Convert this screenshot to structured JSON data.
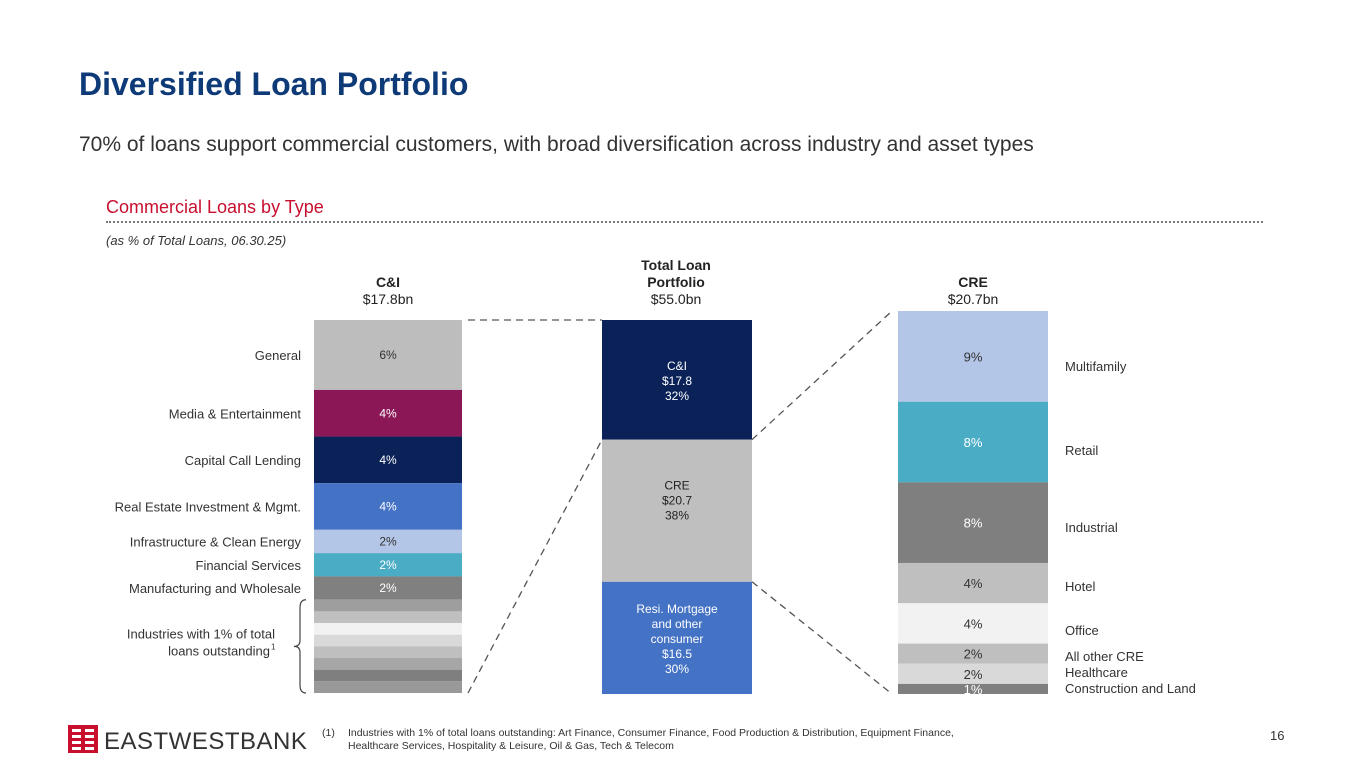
{
  "title": "Diversified Loan Portfolio",
  "subtitle": "70% of loans support commercial customers, with broad diversification across industry and asset types",
  "section_title": "Commercial Loans by Type",
  "note": "(as % of Total Loans, 06.30.25)",
  "footnote": {
    "marker": "(1)",
    "text": "Industries with 1% of total loans outstanding: Art Finance, Consumer Finance, Food Production & Distribution, Equipment Finance, Healthcare Services, Hospitality & Leisure, Oil & Gas, Tech & Telecom"
  },
  "page_number": "16",
  "logo_text": "EASTWESTBANK",
  "colors": {
    "title": "#0e3a78",
    "accent_red": "#c8102e"
  },
  "chart_data": [
    {
      "type": "bar",
      "stacked": true,
      "title": "C&I",
      "total_label": "$17.8bn",
      "segments": [
        {
          "name": "General",
          "value": 6,
          "label": "6%",
          "color": "#bdbdbd",
          "text_color": "#333333"
        },
        {
          "name": "Media & Entertainment",
          "value": 4,
          "label": "4%",
          "color": "#8c1756",
          "text_color": "#ffffff"
        },
        {
          "name": "Capital Call Lending",
          "value": 4,
          "label": "4%",
          "color": "#0a2258",
          "text_color": "#ffffff"
        },
        {
          "name": "Real Estate Investment & Mgmt.",
          "value": 4,
          "label": "4%",
          "color": "#4472c4",
          "text_color": "#ffffff"
        },
        {
          "name": "Infrastructure & Clean Energy",
          "value": 2,
          "label": "2%",
          "color": "#b4c6e7",
          "text_color": "#333333"
        },
        {
          "name": "Financial Services",
          "value": 2,
          "label": "2%",
          "color": "#4bacc6",
          "text_color": "#ffffff"
        },
        {
          "name": "Manufacturing and Wholesale",
          "value": 2,
          "label": "2%",
          "color": "#808080",
          "text_color": "#ffffff"
        }
      ],
      "small_industries": {
        "label_line1": "Industries with 1% of total",
        "label_line2": "loans outstanding",
        "superscript": "1",
        "value_each": 1,
        "count": 8,
        "colors": [
          "#9e9e9e",
          "#c0c0c0",
          "#f2f2f2",
          "#d9d9d9",
          "#bfbfbf",
          "#a6a6a6",
          "#7f7f7f",
          "#999999"
        ]
      }
    },
    {
      "type": "bar",
      "stacked": true,
      "title_line1": "Total Loan",
      "title_line2": "Portfolio",
      "total_label": "$55.0bn",
      "segments": [
        {
          "name": "C&I",
          "amount": "$17.8",
          "percent": "32%",
          "value": 32,
          "color": "#0a2258",
          "text_color": "#ffffff"
        },
        {
          "name": "CRE",
          "amount": "$20.7",
          "percent": "38%",
          "value": 38,
          "color": "#bfbfbf",
          "text_color": "#222222"
        },
        {
          "name_line1": "Resi. Mortgage",
          "name_line2": "and other",
          "name_line3": "consumer",
          "amount": "$16.5",
          "percent": "30%",
          "value": 30,
          "color": "#4472c4",
          "text_color": "#ffffff"
        }
      ]
    },
    {
      "type": "bar",
      "stacked": true,
      "title": "CRE",
      "total_label": "$20.7bn",
      "segments": [
        {
          "name": "Multifamily",
          "value": 9,
          "label": "9%",
          "color": "#b4c6e7",
          "text_color": "#333333"
        },
        {
          "name": "Retail",
          "value": 8,
          "label": "8%",
          "color": "#4bacc6",
          "text_color": "#ffffff"
        },
        {
          "name": "Industrial",
          "value": 8,
          "label": "8%",
          "color": "#7f7f7f",
          "text_color": "#ffffff"
        },
        {
          "name": "Hotel",
          "value": 4,
          "label": "4%",
          "color": "#bfbfbf",
          "text_color": "#333333"
        },
        {
          "name": "Office",
          "value": 4,
          "label": "4%",
          "color": "#f2f2f2",
          "text_color": "#333333"
        },
        {
          "name": "All other CRE",
          "value": 2,
          "label": "2%",
          "color": "#bfbfbf",
          "text_color": "#333333"
        },
        {
          "name": "Healthcare",
          "value": 2,
          "label": "2%",
          "color": "#d9d9d9",
          "text_color": "#333333"
        },
        {
          "name": "Construction and Land",
          "value": 1,
          "label": "1%",
          "color": "#7f7f7f",
          "text_color": "#ffffff"
        }
      ]
    }
  ]
}
